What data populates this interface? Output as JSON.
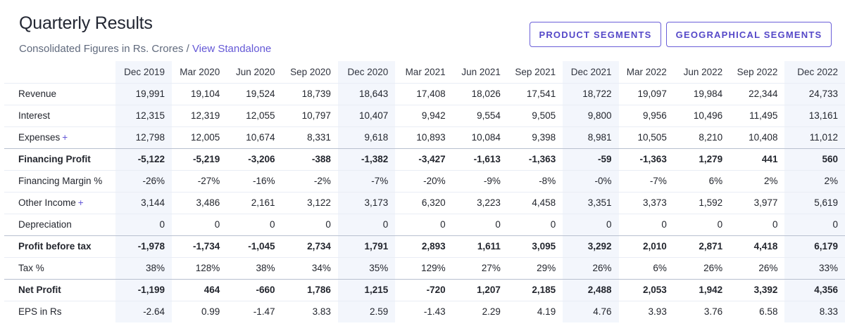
{
  "header": {
    "title": "Quarterly Results",
    "subtitle_prefix": "Consolidated Figures in Rs. Crores /",
    "subtitle_link": "View Standalone"
  },
  "buttons": {
    "product_segments": "PRODUCT SEGMENTS",
    "geographical_segments": "GEOGRAPHICAL SEGMENTS"
  },
  "table": {
    "columns": [
      "Dec 2019",
      "Mar 2020",
      "Jun 2020",
      "Sep 2020",
      "Dec 2020",
      "Mar 2021",
      "Jun 2021",
      "Sep 2021",
      "Dec 2021",
      "Mar 2022",
      "Jun 2022",
      "Sep 2022",
      "Dec 2022"
    ],
    "rows": [
      {
        "label": "Revenue",
        "values": [
          "19,991",
          "19,104",
          "19,524",
          "18,739",
          "18,643",
          "17,408",
          "18,026",
          "17,541",
          "18,722",
          "19,097",
          "19,984",
          "22,344",
          "24,733"
        ]
      },
      {
        "label": "Interest",
        "values": [
          "12,315",
          "12,319",
          "12,055",
          "10,797",
          "10,407",
          "9,942",
          "9,554",
          "9,505",
          "9,800",
          "9,956",
          "10,496",
          "11,495",
          "13,161"
        ]
      },
      {
        "label": "Expenses",
        "expand": "+",
        "values": [
          "12,798",
          "12,005",
          "10,674",
          "8,331",
          "9,618",
          "10,893",
          "10,084",
          "9,398",
          "8,981",
          "10,505",
          "8,210",
          "10,408",
          "11,012"
        ]
      },
      {
        "label": "Financing Profit",
        "bold": true,
        "sep": true,
        "values": [
          "-5,122",
          "-5,219",
          "-3,206",
          "-388",
          "-1,382",
          "-3,427",
          "-1,613",
          "-1,363",
          "-59",
          "-1,363",
          "1,279",
          "441",
          "560"
        ]
      },
      {
        "label": "Financing Margin %",
        "values": [
          "-26%",
          "-27%",
          "-16%",
          "-2%",
          "-7%",
          "-20%",
          "-9%",
          "-8%",
          "-0%",
          "-7%",
          "6%",
          "2%",
          "2%"
        ]
      },
      {
        "label": "Other Income",
        "expand": "+",
        "values": [
          "3,144",
          "3,486",
          "2,161",
          "3,122",
          "3,173",
          "6,320",
          "3,223",
          "4,458",
          "3,351",
          "3,373",
          "1,592",
          "3,977",
          "5,619"
        ]
      },
      {
        "label": "Depreciation",
        "values": [
          "0",
          "0",
          "0",
          "0",
          "0",
          "0",
          "0",
          "0",
          "0",
          "0",
          "0",
          "0",
          "0"
        ]
      },
      {
        "label": "Profit before tax",
        "bold": true,
        "sep": true,
        "values": [
          "-1,978",
          "-1,734",
          "-1,045",
          "2,734",
          "1,791",
          "2,893",
          "1,611",
          "3,095",
          "3,292",
          "2,010",
          "2,871",
          "4,418",
          "6,179"
        ]
      },
      {
        "label": "Tax %",
        "values": [
          "38%",
          "128%",
          "38%",
          "34%",
          "35%",
          "129%",
          "27%",
          "29%",
          "26%",
          "6%",
          "26%",
          "26%",
          "33%"
        ]
      },
      {
        "label": "Net Profit",
        "bold": true,
        "sep": true,
        "values": [
          "-1,199",
          "464",
          "-660",
          "1,786",
          "1,215",
          "-720",
          "1,207",
          "2,185",
          "2,488",
          "2,053",
          "1,942",
          "3,392",
          "4,356"
        ]
      },
      {
        "label": "EPS in Rs",
        "values": [
          "-2.64",
          "0.99",
          "-1.47",
          "3.83",
          "2.59",
          "-1.43",
          "2.29",
          "4.19",
          "4.76",
          "3.93",
          "3.76",
          "6.58",
          "8.33"
        ]
      }
    ]
  }
}
